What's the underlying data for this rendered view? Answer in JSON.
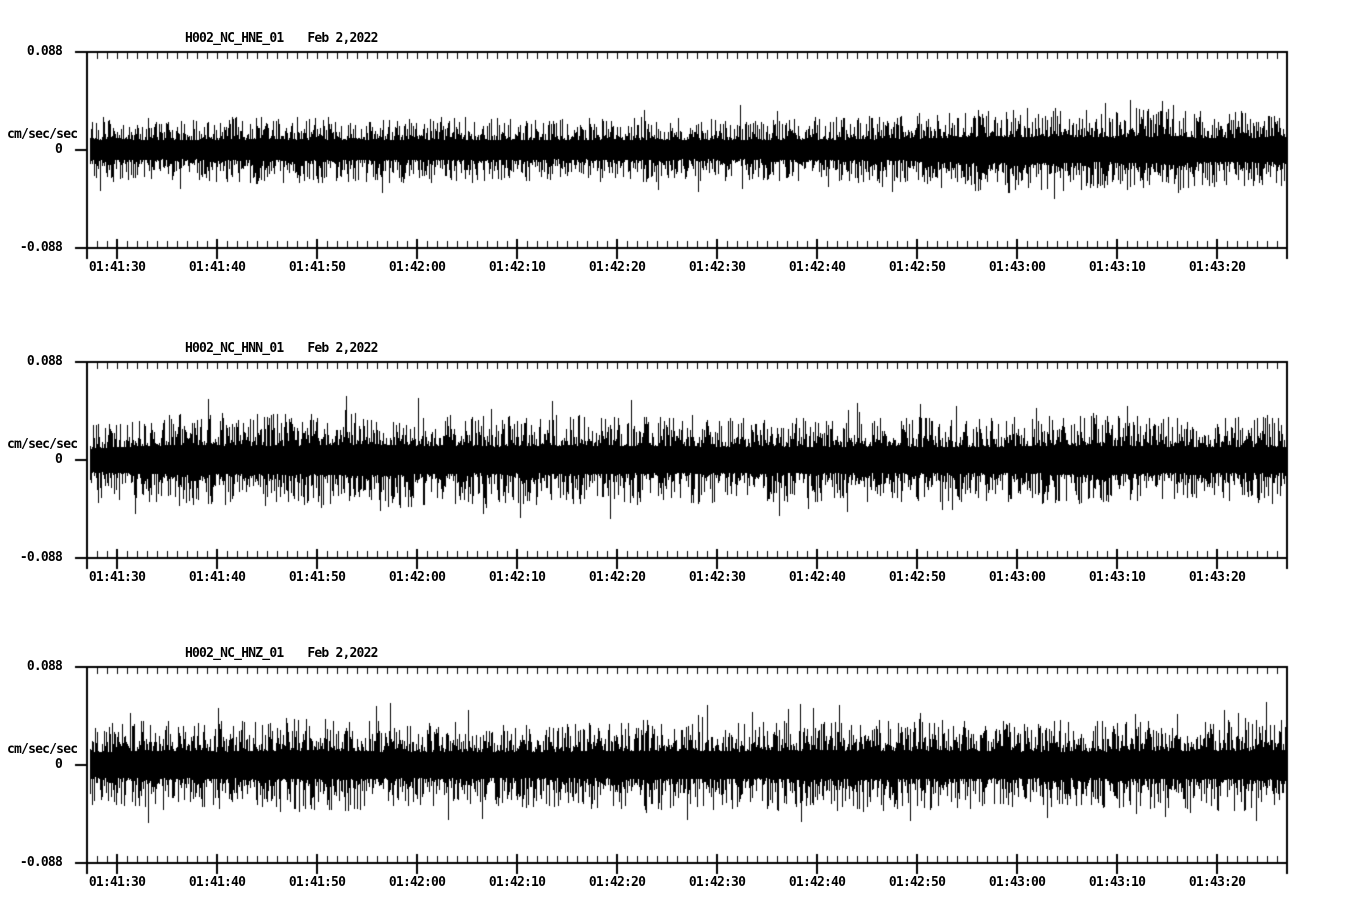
{
  "page": {
    "background": "#ffffff",
    "trace_color": "#000000",
    "axis_color": "#000000"
  },
  "chart_data": [
    {
      "type": "line",
      "subtype": "seismogram-noise-trace",
      "station": "H002_NC_HNE_01",
      "date": "Feb 2,2022",
      "ylabel": "cm/sec/sec",
      "ylim": [
        -0.088,
        0.088
      ],
      "yticks": [
        "0.088",
        "0",
        "-0.088"
      ],
      "xticks": [
        "01:41:30",
        "01:41:40",
        "01:41:50",
        "01:42:00",
        "01:42:10",
        "01:42:20",
        "01:42:30",
        "01:42:40",
        "01:42:50",
        "01:43:00",
        "01:43:10",
        "01:43:20"
      ],
      "x_major_interval_sec": 10,
      "x_minor_interval_sec": 1,
      "x_window_sec": 120,
      "grid": false,
      "legend": false,
      "noise_seed": 101,
      "envelope": [
        [
          0,
          0.018
        ],
        [
          0.08,
          0.017
        ],
        [
          0.15,
          0.019
        ],
        [
          0.22,
          0.018
        ],
        [
          0.3,
          0.018
        ],
        [
          0.38,
          0.017
        ],
        [
          0.45,
          0.018
        ],
        [
          0.52,
          0.017
        ],
        [
          0.6,
          0.018
        ],
        [
          0.68,
          0.019
        ],
        [
          0.73,
          0.023
        ],
        [
          0.8,
          0.024
        ],
        [
          0.86,
          0.022
        ],
        [
          0.9,
          0.025
        ],
        [
          0.93,
          0.021
        ],
        [
          1,
          0.022
        ]
      ],
      "spikes": [
        [
          0.544,
          0.04
        ],
        [
          0.836,
          -0.033
        ],
        [
          0.896,
          0.044
        ],
        [
          0.899,
          0.034
        ]
      ]
    },
    {
      "type": "line",
      "subtype": "seismogram-noise-trace",
      "station": "H002_NC_HNN_01",
      "date": "Feb 2,2022",
      "ylabel": "cm/sec/sec",
      "ylim": [
        -0.088,
        0.088
      ],
      "yticks": [
        "0.088",
        "0",
        "-0.088"
      ],
      "xticks": [
        "01:41:30",
        "01:41:40",
        "01:41:50",
        "01:42:00",
        "01:42:10",
        "01:42:20",
        "01:42:30",
        "01:42:40",
        "01:42:50",
        "01:43:00",
        "01:43:10",
        "01:43:20"
      ],
      "x_major_interval_sec": 10,
      "x_minor_interval_sec": 1,
      "x_window_sec": 120,
      "grid": false,
      "legend": false,
      "noise_seed": 202,
      "envelope": [
        [
          0,
          0.02
        ],
        [
          0.04,
          0.024
        ],
        [
          0.08,
          0.027
        ],
        [
          0.13,
          0.025
        ],
        [
          0.18,
          0.026
        ],
        [
          0.24,
          0.028
        ],
        [
          0.28,
          0.025
        ],
        [
          0.35,
          0.024
        ],
        [
          0.42,
          0.025
        ],
        [
          0.5,
          0.024
        ],
        [
          0.57,
          0.023
        ],
        [
          0.65,
          0.024
        ],
        [
          0.72,
          0.023
        ],
        [
          0.78,
          0.024
        ],
        [
          0.84,
          0.026
        ],
        [
          0.88,
          0.024
        ],
        [
          0.94,
          0.023
        ],
        [
          1,
          0.024
        ]
      ],
      "spikes": [
        [
          0.077,
          0.04
        ],
        [
          0.311,
          -0.036
        ],
        [
          0.6,
          -0.034
        ],
        [
          0.847,
          -0.037
        ],
        [
          0.86,
          0.038
        ]
      ]
    },
    {
      "type": "line",
      "subtype": "seismogram-noise-trace",
      "station": "H002_NC_HNZ_01",
      "date": "Feb 2,2022",
      "ylabel": "cm/sec/sec",
      "ylim": [
        -0.088,
        0.088
      ],
      "yticks": [
        "0.088",
        "0",
        "-0.088"
      ],
      "xticks": [
        "01:41:30",
        "01:41:40",
        "01:41:50",
        "01:42:00",
        "01:42:10",
        "01:42:20",
        "01:42:30",
        "01:42:40",
        "01:42:50",
        "01:43:00",
        "01:43:10",
        "01:43:20"
      ],
      "x_major_interval_sec": 10,
      "x_minor_interval_sec": 1,
      "x_window_sec": 120,
      "grid": false,
      "legend": false,
      "noise_seed": 303,
      "envelope": [
        [
          0,
          0.022
        ],
        [
          0.06,
          0.025
        ],
        [
          0.12,
          0.024
        ],
        [
          0.18,
          0.026
        ],
        [
          0.25,
          0.024
        ],
        [
          0.32,
          0.023
        ],
        [
          0.4,
          0.024
        ],
        [
          0.48,
          0.025
        ],
        [
          0.55,
          0.024
        ],
        [
          0.62,
          0.026
        ],
        [
          0.7,
          0.025
        ],
        [
          0.78,
          0.024
        ],
        [
          0.85,
          0.024
        ],
        [
          0.92,
          0.025
        ],
        [
          1,
          0.026
        ]
      ],
      "spikes": [
        [
          0.2525,
          0.056
        ],
        [
          0.254,
          -0.027
        ],
        [
          0.594,
          0.055
        ],
        [
          0.5948,
          -0.051
        ],
        [
          0.7025,
          -0.04
        ],
        [
          0.959,
          0.047
        ]
      ]
    }
  ]
}
